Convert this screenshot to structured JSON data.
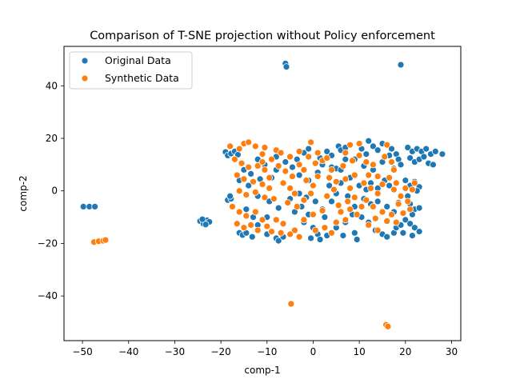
{
  "chart_data": {
    "type": "scatter",
    "title": "Comparison of T-SNE projection without Policy enforcement",
    "xlabel": "comp-1",
    "ylabel": "comp-2",
    "xlim": [
      -54,
      32
    ],
    "ylim": [
      -57,
      55
    ],
    "x_ticks": [
      -50,
      -40,
      -30,
      -20,
      -10,
      0,
      10,
      20,
      30
    ],
    "y_ticks": [
      -40,
      -20,
      0,
      20,
      40
    ],
    "grid": false,
    "legend_position": "upper-left",
    "series": [
      {
        "name": "Original Data",
        "color": "#1f77b4",
        "points": [
          [
            -6,
            48.5
          ],
          [
            -5.8,
            47.2
          ],
          [
            19,
            48
          ],
          [
            -49.8,
            -6
          ],
          [
            -48.5,
            -6
          ],
          [
            -47.3,
            -6
          ],
          [
            -24.5,
            -11.5
          ],
          [
            -23.8,
            -12.5
          ],
          [
            -23,
            -11.2
          ],
          [
            -22.5,
            -11.8
          ],
          [
            -24,
            -10.8
          ],
          [
            -23.3,
            -12.8
          ],
          [
            -19,
            14.8
          ],
          [
            -18.5,
            13.5
          ],
          [
            -17.8,
            14.2
          ],
          [
            -17,
            15
          ],
          [
            -16.3,
            13.8
          ],
          [
            -18.5,
            -3.5
          ],
          [
            -17.8,
            -3
          ],
          [
            -18,
            -2
          ],
          [
            -16,
            -16
          ],
          [
            -15.3,
            -16.8
          ],
          [
            -14.5,
            -16
          ],
          [
            -13.2,
            -17.5
          ],
          [
            -10,
            -16.5
          ],
          [
            -8,
            -18
          ],
          [
            -7.5,
            -19
          ],
          [
            -6.5,
            -17.5
          ],
          [
            -12,
            12
          ],
          [
            -10.5,
            10
          ],
          [
            -8,
            8
          ],
          [
            -9,
            5
          ],
          [
            -11.5,
            4.5
          ],
          [
            -14,
            2
          ],
          [
            -12,
            -2
          ],
          [
            -9.5,
            -4
          ],
          [
            -7.5,
            -6.5
          ],
          [
            -10,
            -10
          ],
          [
            -8,
            13
          ],
          [
            -6,
            11
          ],
          [
            -4.5,
            9
          ],
          [
            -3.5,
            12
          ],
          [
            -2,
            14.5
          ],
          [
            -3,
            6
          ],
          [
            -1,
            4
          ],
          [
            1,
            7
          ],
          [
            2,
            10
          ],
          [
            1.5,
            12.5
          ],
          [
            3,
            15
          ],
          [
            4,
            13.5
          ],
          [
            5.5,
            17
          ],
          [
            6,
            15.5
          ],
          [
            7,
            16.5
          ],
          [
            4,
            9
          ],
          [
            5,
            8.5
          ],
          [
            6,
            8
          ],
          [
            3.5,
            2
          ],
          [
            5,
            -1
          ],
          [
            -5,
            -3
          ],
          [
            -3,
            -1
          ],
          [
            -1.5,
            -2.5
          ],
          [
            0.5,
            -4
          ],
          [
            2,
            -7
          ],
          [
            -2,
            -12
          ],
          [
            0,
            -14
          ],
          [
            1,
            -16.5
          ],
          [
            -0.5,
            -18
          ],
          [
            1.5,
            -18.5
          ],
          [
            3,
            -17
          ],
          [
            5,
            -14
          ],
          [
            7,
            -12
          ],
          [
            6.5,
            -17
          ],
          [
            9,
            -16
          ],
          [
            9.5,
            -18.5
          ],
          [
            12,
            19
          ],
          [
            13,
            17
          ],
          [
            14,
            15.5
          ],
          [
            15,
            18
          ],
          [
            10.5,
            16
          ],
          [
            11.5,
            14
          ],
          [
            9,
            12
          ],
          [
            11,
            9.5
          ],
          [
            13,
            8
          ],
          [
            15,
            11
          ],
          [
            16.5,
            13.5
          ],
          [
            17,
            16
          ],
          [
            18,
            14
          ],
          [
            18.5,
            12
          ],
          [
            19,
            10
          ],
          [
            17.5,
            8.5
          ],
          [
            20.5,
            16.5
          ],
          [
            21.5,
            15
          ],
          [
            22.5,
            16
          ],
          [
            23.5,
            15
          ],
          [
            24.5,
            16
          ],
          [
            25.5,
            14
          ],
          [
            26.5,
            15
          ],
          [
            28,
            14
          ],
          [
            21,
            12.5
          ],
          [
            22,
            11
          ],
          [
            23,
            12
          ],
          [
            24,
            13
          ],
          [
            25,
            10.5
          ],
          [
            26,
            10
          ],
          [
            20,
            4
          ],
          [
            21,
            2
          ],
          [
            22,
            3.5
          ],
          [
            23,
            1.5
          ],
          [
            22.5,
            0
          ],
          [
            10,
            2
          ],
          [
            11.5,
            0.5
          ],
          [
            12.5,
            3
          ],
          [
            14,
            1
          ],
          [
            15.5,
            4
          ],
          [
            16.5,
            2
          ],
          [
            11,
            -3
          ],
          [
            12.5,
            -5
          ],
          [
            14,
            -4
          ],
          [
            16,
            -6
          ],
          [
            17.5,
            -8
          ],
          [
            18.5,
            -4.5
          ],
          [
            10.5,
            -10
          ],
          [
            12,
            -12
          ],
          [
            13.5,
            -15
          ],
          [
            15,
            -16.5
          ],
          [
            16,
            -17.5
          ],
          [
            17.5,
            -16
          ],
          [
            18,
            -14
          ],
          [
            19,
            -13
          ],
          [
            20,
            -11
          ],
          [
            21,
            -12.5
          ],
          [
            22,
            -14
          ],
          [
            23,
            -15.5
          ],
          [
            21.5,
            -17
          ],
          [
            19.5,
            -16
          ],
          [
            21,
            -5
          ],
          [
            22,
            -7
          ],
          [
            23,
            -6.5
          ],
          [
            20.5,
            -2
          ],
          [
            21.5,
            -9
          ],
          [
            -15,
            8
          ],
          [
            -13.5,
            6.5
          ],
          [
            -16,
            4
          ],
          [
            -14.5,
            -7
          ],
          [
            -13,
            -10
          ],
          [
            -12,
            -13
          ],
          [
            -4,
            -8
          ],
          [
            -2.5,
            -6
          ],
          [
            -1,
            -9
          ],
          [
            2.5,
            -10
          ],
          [
            4,
            -4
          ],
          [
            7.5,
            -2
          ],
          [
            8,
            5
          ],
          [
            9,
            -6
          ],
          [
            8.5,
            -9
          ],
          [
            6,
            3
          ],
          [
            7,
            12
          ],
          [
            -1,
            16
          ]
        ]
      },
      {
        "name": "Synthetic Data",
        "color": "#ff7f0e",
        "points": [
          [
            -47.5,
            -19.5
          ],
          [
            -46.5,
            -19.2
          ],
          [
            -45.5,
            -19
          ],
          [
            -45,
            -18.7
          ],
          [
            -4.8,
            -43
          ],
          [
            15.8,
            -51
          ],
          [
            16.2,
            -51.6
          ],
          [
            -18,
            17
          ],
          [
            -16,
            16
          ],
          [
            -15,
            18
          ],
          [
            -14,
            18.5
          ],
          [
            -12.5,
            17
          ],
          [
            -10.5,
            16.5
          ],
          [
            -8,
            15.5
          ],
          [
            -7,
            14.5
          ],
          [
            -5,
            13
          ],
          [
            -9,
            12
          ],
          [
            -17,
            12
          ],
          [
            -15.5,
            10.5
          ],
          [
            -14,
            9
          ],
          [
            -12,
            9.5
          ],
          [
            -10.5,
            8
          ],
          [
            -11,
            11
          ],
          [
            -16.5,
            6
          ],
          [
            -15,
            4.5
          ],
          [
            -13,
            3.5
          ],
          [
            -11,
            2.5
          ],
          [
            -9.5,
            1
          ],
          [
            -16,
            0
          ],
          [
            -14.5,
            -1.5
          ],
          [
            -12.5,
            -0.5
          ],
          [
            -10.5,
            -2.5
          ],
          [
            -8.5,
            -3
          ],
          [
            -17.5,
            -6
          ],
          [
            -16,
            -8
          ],
          [
            -14.5,
            -9.5
          ],
          [
            -12.5,
            -8
          ],
          [
            -11,
            -11
          ],
          [
            -16.5,
            -12.5
          ],
          [
            -15,
            -14
          ],
          [
            -13.5,
            -13
          ],
          [
            -12,
            -15
          ],
          [
            -10,
            -13.5
          ],
          [
            -8,
            -11
          ],
          [
            -6.5,
            -12.5
          ],
          [
            -9,
            -15.5
          ],
          [
            -7,
            -16
          ],
          [
            -7.5,
            9.5
          ],
          [
            -6,
            7.5
          ],
          [
            -4.5,
            5.5
          ],
          [
            -6.5,
            3
          ],
          [
            -5,
            1
          ],
          [
            -4,
            -1
          ],
          [
            -5.5,
            -4.5
          ],
          [
            -3.5,
            -6
          ],
          [
            -2,
            -3.5
          ],
          [
            -0.5,
            -1
          ],
          [
            0,
            2
          ],
          [
            -1.5,
            4
          ],
          [
            1,
            5.5
          ],
          [
            -2,
            8
          ],
          [
            0.5,
            10.5
          ],
          [
            2,
            11.5
          ],
          [
            -1,
            13
          ],
          [
            1,
            14.5
          ],
          [
            3,
            12.5
          ],
          [
            -3,
            15
          ],
          [
            -0.5,
            18.5
          ],
          [
            3.5,
            5
          ],
          [
            5,
            3.5
          ],
          [
            4.5,
            0.5
          ],
          [
            3,
            -2
          ],
          [
            5.5,
            -5.5
          ],
          [
            2,
            -7.5
          ],
          [
            0,
            -9
          ],
          [
            -2,
            -11
          ],
          [
            -4,
            -15
          ],
          [
            -5,
            -16.5
          ],
          [
            -3,
            -17.5
          ],
          [
            0.5,
            -15
          ],
          [
            2.5,
            -14
          ],
          [
            4,
            -16
          ],
          [
            5,
            -12
          ],
          [
            7,
            -11
          ],
          [
            6,
            -8
          ],
          [
            8,
            -7
          ],
          [
            9.5,
            -9
          ],
          [
            7.5,
            -4
          ],
          [
            9,
            -2.5
          ],
          [
            8,
            1
          ],
          [
            7,
            4.5
          ],
          [
            9,
            6
          ],
          [
            6.5,
            9.5
          ],
          [
            8.5,
            11.5
          ],
          [
            7,
            14.5
          ],
          [
            8,
            17.5
          ],
          [
            10,
            18
          ],
          [
            10,
            13.5
          ],
          [
            11.5,
            11
          ],
          [
            13,
            10
          ],
          [
            12,
            6
          ],
          [
            14,
            5.5
          ],
          [
            11,
            3
          ],
          [
            12.5,
            1
          ],
          [
            14,
            -1
          ],
          [
            11.5,
            -3.5
          ],
          [
            13,
            -6
          ],
          [
            15,
            -8
          ],
          [
            13.5,
            -10.5
          ],
          [
            12,
            -13
          ],
          [
            14,
            -15
          ],
          [
            16,
            -11.5
          ],
          [
            17,
            -9
          ],
          [
            18,
            -12
          ],
          [
            16,
            17.5
          ],
          [
            15.5,
            13
          ],
          [
            17,
            11
          ],
          [
            17.5,
            8
          ],
          [
            16.5,
            5
          ],
          [
            18,
            3
          ],
          [
            17.5,
            0.5
          ],
          [
            19,
            -2
          ],
          [
            18.5,
            -5
          ],
          [
            19.5,
            -8.5
          ],
          [
            20,
            1
          ],
          [
            21.5,
            0.5
          ],
          [
            22,
            3
          ],
          [
            20.5,
            -4
          ],
          [
            21,
            -7
          ],
          [
            -11,
            14
          ],
          [
            -9.5,
            5
          ],
          [
            -3,
            10
          ],
          [
            4,
            8
          ],
          [
            10.5,
            -6
          ],
          [
            15,
            2.5
          ]
        ]
      }
    ]
  }
}
